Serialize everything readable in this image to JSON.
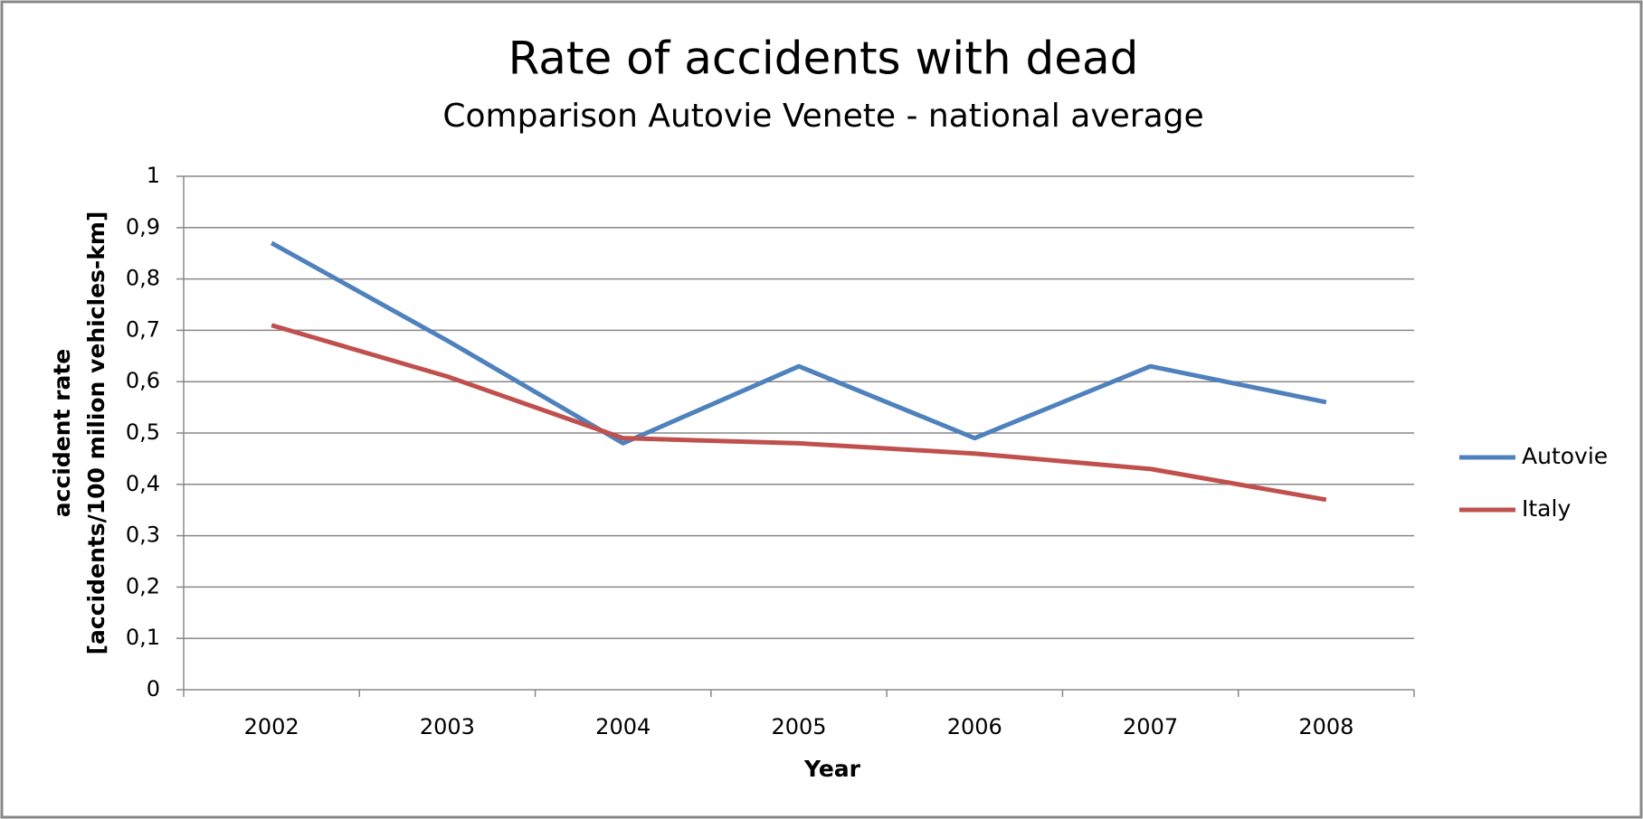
{
  "chart_data": {
    "type": "line",
    "title": "Rate of accidents with dead",
    "subtitle": "Comparison Autovie Venete - national average",
    "x_label": "Year",
    "y_label": [
      "accident rate",
      "[accidents/100 milion vehicles-km]"
    ],
    "categories": [
      "2002",
      "2003",
      "2004",
      "2005",
      "2006",
      "2007",
      "2008"
    ],
    "series": [
      {
        "name": "Autovie",
        "color": "#4f81bd",
        "values": [
          0.87,
          0.68,
          0.48,
          0.63,
          0.49,
          0.63,
          0.56
        ]
      },
      {
        "name": "Italy",
        "color": "#c0504d",
        "values": [
          0.71,
          0.61,
          0.49,
          0.48,
          0.46,
          0.43,
          0.37
        ]
      }
    ],
    "ylim": [
      0,
      1
    ],
    "yticks": [
      0,
      {
        "value": 0.1,
        "label": "0,1"
      },
      {
        "value": 0.2,
        "label": "0,2"
      },
      {
        "value": 0.3,
        "label": "0,3"
      },
      {
        "value": 0.4,
        "label": "0,4"
      },
      {
        "value": 0.5,
        "label": "0,5"
      },
      {
        "value": 0.6,
        "label": "0,6"
      },
      {
        "value": 0.7,
        "label": "0,7"
      },
      {
        "value": 0.8,
        "label": "0,8"
      },
      {
        "value": 0.9,
        "label": "0,9"
      },
      1
    ],
    "grid": true,
    "legend": "right"
  }
}
